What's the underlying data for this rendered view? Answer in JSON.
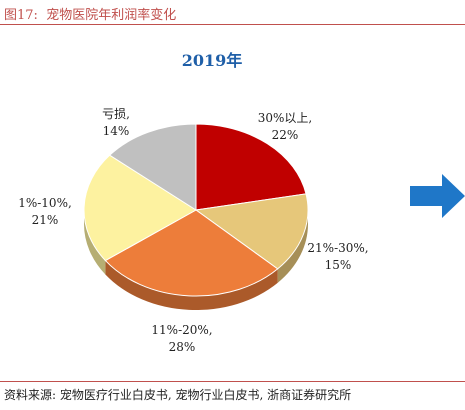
{
  "figure": {
    "label": "图17:",
    "title": "宠物医院年利润率变化"
  },
  "chart_data": {
    "type": "pie",
    "title": "2019年",
    "unit": "%",
    "slices": [
      {
        "label": "30%以上,",
        "value": 22,
        "value_label": "22%",
        "color": "#c00000"
      },
      {
        "label": "21%-30%,",
        "value": 15,
        "value_label": "15%",
        "color": "#e6c77a"
      },
      {
        "label": "11%-20%,",
        "value": 28,
        "value_label": "28%",
        "color": "#ed7d3a"
      },
      {
        "label": "1%-10%,",
        "value": 21,
        "value_label": "21%",
        "color": "#fdf2a0"
      },
      {
        "label": "亏损,",
        "value": 14,
        "value_label": "14%",
        "color": "#c0c0c0"
      }
    ],
    "start_angle_deg": 0,
    "direction": "clockwise",
    "style": "3d-tilted",
    "arrow_color": "#1f77c8"
  },
  "source": "资料来源: 宠物医疗行业白皮书, 宠物行业白皮书, 浙商证券研究所",
  "colors": {
    "accent": "#c0504d",
    "title_blue": "#1f5fa8"
  }
}
